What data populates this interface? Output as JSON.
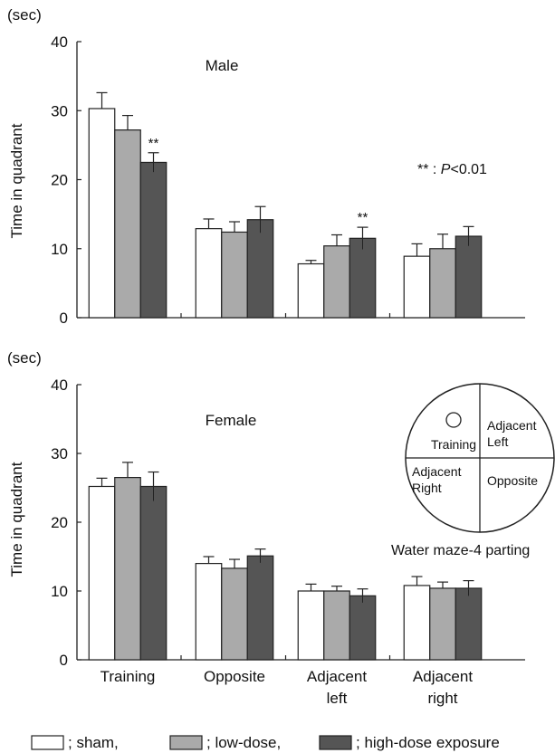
{
  "chart_data": [
    {
      "type": "bar",
      "annotation_label": "Male",
      "unit_label": "(sec)",
      "ylabel": "Time in quadrant",
      "xlabel": "",
      "ylim": [
        0,
        40
      ],
      "yticks": [
        "0",
        "10",
        "20",
        "30",
        "40"
      ],
      "categories": [
        "Training",
        "Opposite",
        "Adjacent left",
        "Adjacent right"
      ],
      "series": [
        {
          "name": "sham",
          "color": "#ffffff",
          "values": [
            30.3,
            12.9,
            7.8,
            8.9
          ],
          "errors": [
            2.3,
            1.4,
            0.5,
            1.8
          ]
        },
        {
          "name": "low-dose",
          "color": "#aaaaaa",
          "values": [
            27.2,
            12.4,
            10.4,
            10.0
          ],
          "errors": [
            2.1,
            1.5,
            1.6,
            2.1
          ]
        },
        {
          "name": "high-dose exposure",
          "color": "#555555",
          "values": [
            22.5,
            14.2,
            11.5,
            11.8
          ],
          "errors": [
            1.4,
            1.9,
            1.6,
            1.4
          ]
        }
      ],
      "significance": [
        {
          "category": 0,
          "series": 2,
          "label": "**"
        },
        {
          "category": 2,
          "series": 2,
          "label": "**"
        }
      ],
      "p_note": {
        "prefix": "** : ",
        "italic": "P",
        "suffix": "<0.01"
      }
    },
    {
      "type": "bar",
      "annotation_label": "Female",
      "unit_label": "(sec)",
      "ylabel": "Time in quadrant",
      "xlabel": "",
      "ylim": [
        0,
        40
      ],
      "yticks": [
        "0",
        "10",
        "20",
        "30",
        "40"
      ],
      "categories": [
        "Training",
        "Opposite",
        "Adjacent left",
        "Adjacent right"
      ],
      "tick_labels": [
        [
          "Training"
        ],
        [
          "Opposite"
        ],
        [
          "Adjacent",
          "left"
        ],
        [
          "Adjacent",
          "right"
        ]
      ],
      "series": [
        {
          "name": "sham",
          "color": "#ffffff",
          "values": [
            25.2,
            14.0,
            10.0,
            10.8
          ],
          "errors": [
            1.2,
            1.0,
            1.0,
            1.3
          ]
        },
        {
          "name": "low-dose",
          "color": "#aaaaaa",
          "values": [
            26.5,
            13.3,
            10.0,
            10.4
          ],
          "errors": [
            2.2,
            1.3,
            0.7,
            0.9
          ]
        },
        {
          "name": "high-dose exposure",
          "color": "#555555",
          "values": [
            25.2,
            15.1,
            9.3,
            10.4
          ],
          "errors": [
            2.1,
            1.0,
            1.0,
            1.1
          ]
        }
      ]
    }
  ],
  "maze_diagram": {
    "quadrants": [
      [
        "Adjacent",
        "Left"
      ],
      [
        "Training"
      ],
      [
        "Adjacent",
        "Right"
      ],
      [
        "Opposite"
      ]
    ],
    "caption": "Water maze-4 parting"
  },
  "legend": [
    {
      "label": "; sham,",
      "color": "#ffffff"
    },
    {
      "label": "; low-dose,",
      "color": "#aaaaaa"
    },
    {
      "label": "; high-dose exposure",
      "color": "#555555"
    }
  ]
}
